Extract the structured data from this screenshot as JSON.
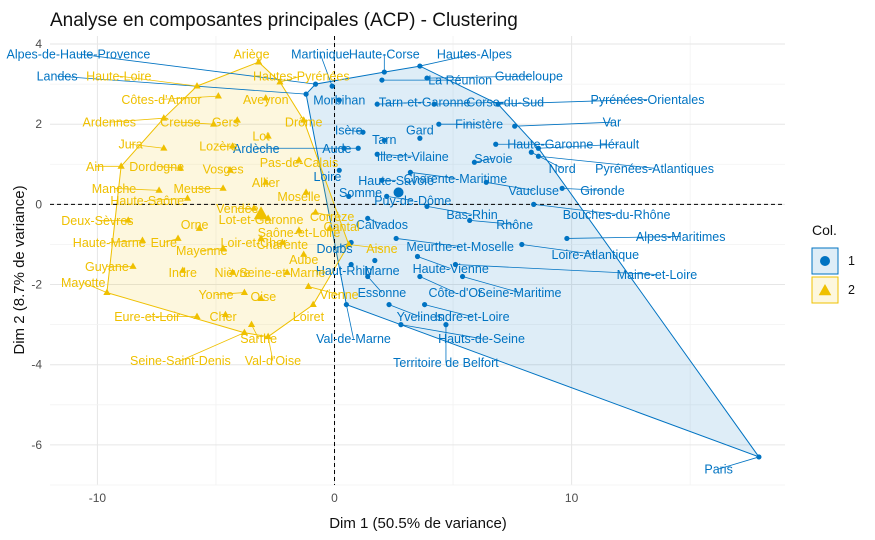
{
  "chart_data": {
    "type": "scatter",
    "title": "Analyse en composantes principales (ACP) - Clustering",
    "xlabel": "Dim 1 (50.5% de variance)",
    "ylabel": "Dim 2 (8.7% de variance)",
    "xlim": [
      -12,
      19
    ],
    "ylim": [
      -7,
      4.2
    ],
    "xticks": [
      -10,
      0,
      10
    ],
    "yticks": [
      -6,
      -4,
      -2,
      0,
      2,
      4
    ],
    "grid": true,
    "legend": {
      "title": "Col.",
      "placement": "right",
      "entries": [
        "1",
        "2"
      ]
    },
    "colors": {
      "1": "#0073C2",
      "2": "#EFC000"
    },
    "centroids": [
      {
        "cluster": "1",
        "x": 2.7,
        "y": 0.3
      },
      {
        "cluster": "2",
        "x": -3.1,
        "y": -0.25
      }
    ],
    "series": [
      {
        "name": "1",
        "points": [
          {
            "label": "Paris",
            "x": 17.9,
            "y": -6.3,
            "lx": 16.2,
            "ly": -6.6
          },
          {
            "label": "Alpes-de-Haute-Provence",
            "x": -0.8,
            "y": 3.0,
            "lx": -10.8,
            "ly": 3.75
          },
          {
            "label": "Martinique",
            "x": -0.1,
            "y": 2.95,
            "lx": -0.6,
            "ly": 3.75
          },
          {
            "label": "Haute-Corse",
            "x": 2.1,
            "y": 3.3,
            "lx": 2.1,
            "ly": 3.75
          },
          {
            "label": "Hautes-Alpes",
            "x": 3.6,
            "y": 3.45,
            "lx": 5.9,
            "ly": 3.75
          },
          {
            "label": "La Réunion",
            "x": 2.0,
            "y": 3.1,
            "lx": 5.3,
            "ly": 3.1
          },
          {
            "label": "Guadeloupe",
            "x": 3.9,
            "y": 3.15,
            "lx": 8.2,
            "ly": 3.2
          },
          {
            "label": "Landes",
            "x": -1.2,
            "y": 2.75,
            "lx": -11.7,
            "ly": 3.2
          },
          {
            "label": "Morbihan",
            "x": 0.2,
            "y": 2.6,
            "lx": 0.2,
            "ly": 2.6
          },
          {
            "label": "Tarn-et-Garonne",
            "x": 1.8,
            "y": 2.5,
            "lx": 3.8,
            "ly": 2.55
          },
          {
            "label": "Corse-du-Sud",
            "x": 4.2,
            "y": 2.5,
            "lx": 7.2,
            "ly": 2.55
          },
          {
            "label": "Pyrénées-Orientales",
            "x": 6.9,
            "y": 2.5,
            "lx": 13.2,
            "ly": 2.62
          },
          {
            "label": "Var",
            "x": 7.6,
            "y": 1.95,
            "lx": 11.7,
            "ly": 2.05
          },
          {
            "label": "Finistère",
            "x": 4.4,
            "y": 2.0,
            "lx": 6.1,
            "ly": 2.0
          },
          {
            "label": "Isère",
            "x": 1.2,
            "y": 1.8,
            "lx": 0.6,
            "ly": 1.85
          },
          {
            "label": "Gard",
            "x": 3.6,
            "y": 1.65,
            "lx": 3.6,
            "ly": 1.85
          },
          {
            "label": "Tarn",
            "x": 2.1,
            "y": 1.6,
            "lx": 2.1,
            "ly": 1.62
          },
          {
            "label": "Haute-Garonne",
            "x": 6.8,
            "y": 1.5,
            "lx": 9.1,
            "ly": 1.5
          },
          {
            "label": "Hérault",
            "x": 8.6,
            "y": 1.4,
            "lx": 12.0,
            "ly": 1.5
          },
          {
            "label": "Ardèche",
            "x": 0.4,
            "y": 1.4,
            "lx": -3.3,
            "ly": 1.4
          },
          {
            "label": "Aude",
            "x": 1.0,
            "y": 1.4,
            "lx": 0.1,
            "ly": 1.4
          },
          {
            "label": "Ille-et-Vilaine",
            "x": 1.8,
            "y": 1.25,
            "lx": 3.3,
            "ly": 1.2
          },
          {
            "label": "Savoie",
            "x": 5.9,
            "y": 1.05,
            "lx": 6.7,
            "ly": 1.15
          },
          {
            "label": "Nord",
            "x": 8.3,
            "y": 1.3,
            "lx": 9.6,
            "ly": 0.9
          },
          {
            "label": "Pyrénées-Atlantiques",
            "x": 8.6,
            "y": 1.2,
            "lx": 13.5,
            "ly": 0.9
          },
          {
            "label": "Loire",
            "x": 0.2,
            "y": 0.85,
            "lx": -0.3,
            "ly": 0.7
          },
          {
            "label": "Charente-Maritime",
            "x": 3.2,
            "y": 0.8,
            "lx": 5.1,
            "ly": 0.65
          },
          {
            "label": "Haute-Savoie",
            "x": 2.0,
            "y": 0.6,
            "lx": 2.6,
            "ly": 0.6
          },
          {
            "label": "Vaucluse",
            "x": 6.4,
            "y": 0.55,
            "lx": 8.4,
            "ly": 0.35
          },
          {
            "label": "Gironde",
            "x": 9.6,
            "y": 0.4,
            "lx": 11.3,
            "ly": 0.35
          },
          {
            "label": "Somme",
            "x": 0.6,
            "y": 0.2,
            "lx": 1.1,
            "ly": 0.3
          },
          {
            "label": "Puy-de-Dôme",
            "x": 2.2,
            "y": 0.2,
            "lx": 3.3,
            "ly": 0.1
          },
          {
            "label": "Bouches-du-Rhône",
            "x": 8.4,
            "y": 0.0,
            "lx": 11.9,
            "ly": -0.25
          },
          {
            "label": "Bas-Rhin",
            "x": 3.9,
            "y": -0.05,
            "lx": 5.8,
            "ly": -0.25
          },
          {
            "label": "Rhône",
            "x": 5.7,
            "y": -0.4,
            "lx": 7.6,
            "ly": -0.5
          },
          {
            "label": "Calvados",
            "x": 1.4,
            "y": -0.35,
            "lx": 2.0,
            "ly": -0.5
          },
          {
            "label": "Alpes-Maritimes",
            "x": 9.8,
            "y": -0.85,
            "lx": 14.6,
            "ly": -0.8
          },
          {
            "label": "Meurthe-et-Moselle",
            "x": 2.6,
            "y": -0.85,
            "lx": 5.3,
            "ly": -1.05
          },
          {
            "label": "Loire-Atlantique",
            "x": 7.9,
            "y": -1.0,
            "lx": 11.0,
            "ly": -1.25
          },
          {
            "label": "Doubs",
            "x": 0.7,
            "y": -0.95,
            "lx": 0.0,
            "ly": -1.1
          },
          {
            "label": "Haute-Vienne",
            "x": 3.5,
            "y": -1.3,
            "lx": 4.9,
            "ly": -1.6
          },
          {
            "label": "Haut-Rhin",
            "x": 0.7,
            "y": -1.5,
            "lx": 0.4,
            "ly": -1.65
          },
          {
            "label": "Marne",
            "x": 1.7,
            "y": -1.4,
            "lx": 2.0,
            "ly": -1.65
          },
          {
            "label": "Maine-et-Loire",
            "x": 5.1,
            "y": -1.5,
            "lx": 13.6,
            "ly": -1.75
          },
          {
            "label": "Essonne",
            "x": 1.4,
            "y": -1.8,
            "lx": 2.0,
            "ly": -2.2
          },
          {
            "label": "Côte-d'Or",
            "x": 3.6,
            "y": -1.8,
            "lx": 5.1,
            "ly": -2.2
          },
          {
            "label": "Seine-Maritime",
            "x": 5.4,
            "y": -1.8,
            "lx": 7.8,
            "ly": -2.2
          },
          {
            "label": "Yvelines",
            "x": 2.3,
            "y": -2.5,
            "lx": 3.6,
            "ly": -2.8
          },
          {
            "label": "Indre-et-Loire",
            "x": 3.8,
            "y": -2.5,
            "lx": 5.8,
            "ly": -2.8
          },
          {
            "label": "Val-de-Marne",
            "x": 0.5,
            "y": -2.5,
            "lx": 0.8,
            "ly": -3.35
          },
          {
            "label": "Hauts-de-Seine",
            "x": 2.8,
            "y": -3.0,
            "lx": 6.2,
            "ly": -3.35
          },
          {
            "label": "Territoire de Belfort",
            "x": 4.7,
            "y": -3.0,
            "lx": 4.7,
            "ly": -3.95
          }
        ]
      },
      {
        "name": "2",
        "points": [
          {
            "label": "Ariège",
            "x": -3.2,
            "y": 3.55,
            "lx": -3.5,
            "ly": 3.75
          },
          {
            "label": "Haute-Loire",
            "x": -5.8,
            "y": 2.95,
            "lx": -9.1,
            "ly": 3.2
          },
          {
            "label": "Hautes-Pyrénées",
            "x": -2.3,
            "y": 3.05,
            "lx": -1.4,
            "ly": 3.2
          },
          {
            "label": "Côtes-d'Armor",
            "x": -4.9,
            "y": 2.7,
            "lx": -7.3,
            "ly": 2.62
          },
          {
            "label": "Aveyron",
            "x": -2.9,
            "y": 2.65,
            "lx": -2.9,
            "ly": 2.62
          },
          {
            "label": "Ardennes",
            "x": -7.2,
            "y": 2.15,
            "lx": -9.5,
            "ly": 2.05
          },
          {
            "label": "Creuse",
            "x": -5.1,
            "y": 2.0,
            "lx": -6.5,
            "ly": 2.05
          },
          {
            "label": "Gers",
            "x": -4.1,
            "y": 2.1,
            "lx": -4.6,
            "ly": 2.05
          },
          {
            "label": "Drôme",
            "x": -1.3,
            "y": 2.1,
            "lx": -1.3,
            "ly": 2.05
          },
          {
            "label": "Lot",
            "x": -2.8,
            "y": 1.7,
            "lx": -3.1,
            "ly": 1.7
          },
          {
            "label": "Jura",
            "x": -7.2,
            "y": 1.4,
            "lx": -8.6,
            "ly": 1.5
          },
          {
            "label": "Lozère",
            "x": -4.3,
            "y": 1.45,
            "lx": -4.9,
            "ly": 1.45
          },
          {
            "label": "Pas-de-Calais",
            "x": -1.5,
            "y": 1.1,
            "lx": -1.5,
            "ly": 1.05
          },
          {
            "label": "Ain",
            "x": -9.0,
            "y": 0.95,
            "lx": -10.1,
            "ly": 0.95
          },
          {
            "label": "Dordogne",
            "x": -6.5,
            "y": 0.9,
            "lx": -7.5,
            "ly": 0.95
          },
          {
            "label": "Vosges",
            "x": -4.4,
            "y": 0.85,
            "lx": -4.7,
            "ly": 0.88
          },
          {
            "label": "Allier",
            "x": -2.9,
            "y": 0.55,
            "lx": -2.9,
            "ly": 0.55
          },
          {
            "label": "Manche",
            "x": -7.4,
            "y": 0.35,
            "lx": -9.3,
            "ly": 0.4
          },
          {
            "label": "Meuse",
            "x": -4.7,
            "y": 0.4,
            "lx": -6.0,
            "ly": 0.4
          },
          {
            "label": "Moselle",
            "x": -1.2,
            "y": 0.3,
            "lx": -1.5,
            "ly": 0.2
          },
          {
            "label": "Haute-Saône",
            "x": -6.2,
            "y": 0.15,
            "lx": -7.9,
            "ly": 0.1
          },
          {
            "label": "Vendée",
            "x": -3.4,
            "y": -0.1,
            "lx": -4.1,
            "ly": -0.1
          },
          {
            "label": "Corrèze",
            "x": -0.8,
            "y": -0.2,
            "lx": -0.1,
            "ly": -0.3
          },
          {
            "label": "Deux-Sèvres",
            "x": -8.7,
            "y": -0.4,
            "lx": -10.0,
            "ly": -0.4
          },
          {
            "label": "Lot-et-Garonne",
            "x": -2.8,
            "y": -0.35,
            "lx": -3.1,
            "ly": -0.38
          },
          {
            "label": "Orne",
            "x": -5.7,
            "y": -0.6,
            "lx": -5.9,
            "ly": -0.5
          },
          {
            "label": "Saône-et-Loire",
            "x": -1.5,
            "y": -0.65,
            "lx": -1.5,
            "ly": -0.7
          },
          {
            "label": "Cantal",
            "x": -0.2,
            "y": -0.6,
            "lx": 0.3,
            "ly": -0.55
          },
          {
            "label": "Haute-Marne",
            "x": -8.1,
            "y": -0.9,
            "lx": -9.5,
            "ly": -0.95
          },
          {
            "label": "Eure",
            "x": -6.6,
            "y": -0.85,
            "lx": -7.2,
            "ly": -0.95
          },
          {
            "label": "Loir-et-Cher",
            "x": -3.1,
            "y": -0.85,
            "lx": -3.4,
            "ly": -0.95
          },
          {
            "label": "Charente",
            "x": -2.2,
            "y": -0.95,
            "lx": -2.2,
            "ly": -1.0
          },
          {
            "label": "Aisne",
            "x": 0.6,
            "y": -1.0,
            "lx": 2.0,
            "ly": -1.1
          },
          {
            "label": "Mayenne",
            "x": -4.7,
            "y": -1.1,
            "lx": -5.6,
            "ly": -1.15
          },
          {
            "label": "Aube",
            "x": -1.3,
            "y": -1.25,
            "lx": -1.3,
            "ly": -1.38
          },
          {
            "label": "Guyane",
            "x": -8.5,
            "y": -1.55,
            "lx": -9.6,
            "ly": -1.55
          },
          {
            "label": "Indre",
            "x": -6.4,
            "y": -1.65,
            "lx": -6.4,
            "ly": -1.7
          },
          {
            "label": "Nièvre",
            "x": -4.3,
            "y": -1.7,
            "lx": -4.3,
            "ly": -1.7
          },
          {
            "label": "Seine-et-Marne",
            "x": -2.0,
            "y": -1.7,
            "lx": -2.2,
            "ly": -1.7
          },
          {
            "label": "Mayotte",
            "x": -9.6,
            "y": -2.2,
            "lx": -10.6,
            "ly": -1.95
          },
          {
            "label": "Yonne",
            "x": -3.8,
            "y": -2.2,
            "lx": -5.0,
            "ly": -2.25
          },
          {
            "label": "Oise",
            "x": -3.1,
            "y": -2.35,
            "lx": -3.0,
            "ly": -2.3
          },
          {
            "label": "Vienne",
            "x": -1.1,
            "y": -2.05,
            "lx": 0.2,
            "ly": -2.25
          },
          {
            "label": "Eure-et-Loir",
            "x": -5.8,
            "y": -2.8,
            "lx": -7.9,
            "ly": -2.8
          },
          {
            "label": "Cher",
            "x": -4.6,
            "y": -2.75,
            "lx": -4.7,
            "ly": -2.8
          },
          {
            "label": "Loiret",
            "x": -0.9,
            "y": -2.5,
            "lx": -1.1,
            "ly": -2.8
          },
          {
            "label": "Sarthe",
            "x": -3.5,
            "y": -3.0,
            "lx": -3.2,
            "ly": -3.35
          },
          {
            "label": "Seine-Saint-Denis",
            "x": -3.8,
            "y": -3.2,
            "lx": -6.5,
            "ly": -3.9
          },
          {
            "label": "Val-d'Oise",
            "x": -2.8,
            "y": -3.3,
            "lx": -2.6,
            "ly": -3.9
          }
        ]
      }
    ]
  }
}
